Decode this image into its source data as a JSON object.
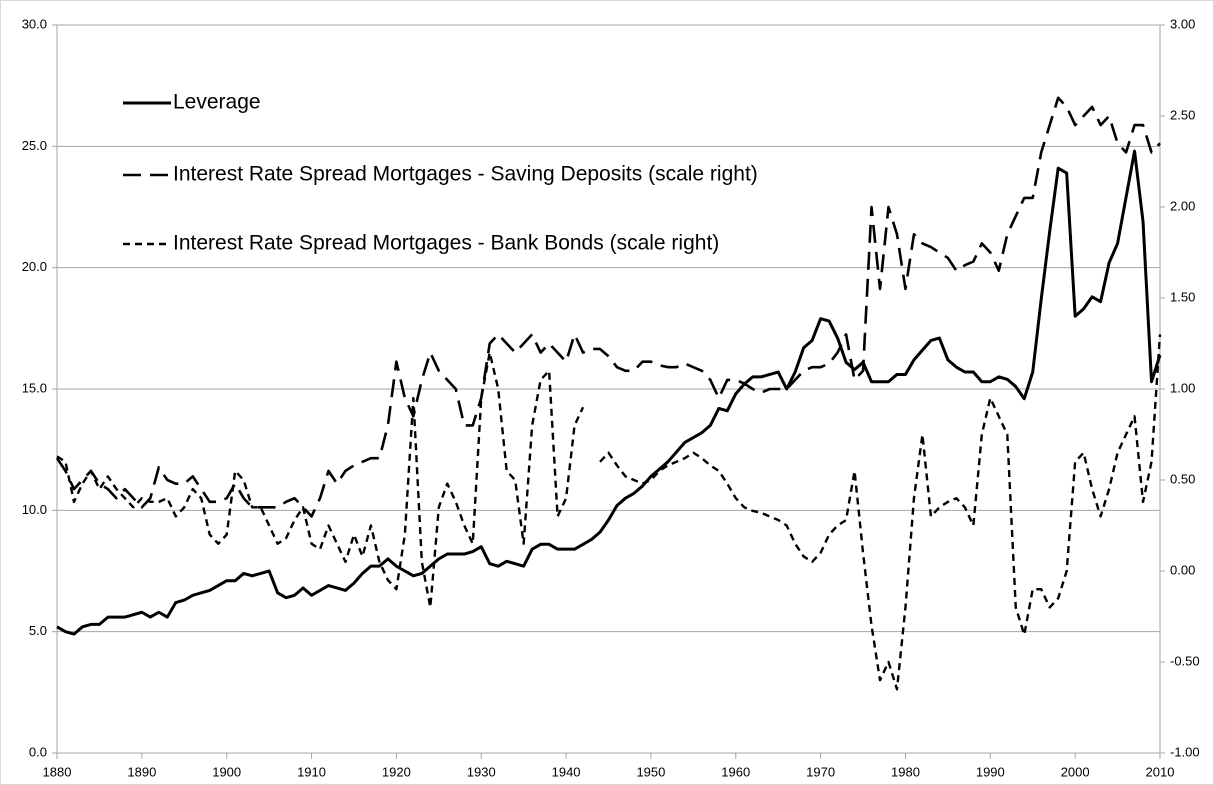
{
  "chart_data": {
    "type": "line",
    "x": [
      1880,
      1881,
      1882,
      1883,
      1884,
      1885,
      1886,
      1887,
      1888,
      1889,
      1890,
      1891,
      1892,
      1893,
      1894,
      1895,
      1896,
      1897,
      1898,
      1899,
      1900,
      1901,
      1902,
      1903,
      1904,
      1905,
      1906,
      1907,
      1908,
      1909,
      1910,
      1911,
      1912,
      1913,
      1914,
      1915,
      1916,
      1917,
      1918,
      1919,
      1920,
      1921,
      1922,
      1923,
      1924,
      1925,
      1926,
      1927,
      1928,
      1929,
      1930,
      1931,
      1932,
      1933,
      1934,
      1935,
      1936,
      1937,
      1938,
      1939,
      1940,
      1941,
      1942,
      1943,
      1944,
      1945,
      1946,
      1947,
      1948,
      1949,
      1950,
      1951,
      1952,
      1953,
      1954,
      1955,
      1956,
      1957,
      1958,
      1959,
      1960,
      1961,
      1962,
      1963,
      1964,
      1965,
      1966,
      1967,
      1968,
      1969,
      1970,
      1971,
      1972,
      1973,
      1974,
      1975,
      1976,
      1977,
      1978,
      1979,
      1980,
      1981,
      1982,
      1983,
      1984,
      1985,
      1986,
      1987,
      1988,
      1989,
      1990,
      1991,
      1992,
      1993,
      1994,
      1995,
      1996,
      1997,
      1998,
      1999,
      2000,
      2001,
      2002,
      2003,
      2004,
      2005,
      2006,
      2007,
      2008,
      2009,
      2010
    ],
    "series": [
      {
        "name": "Leverage",
        "color": "#000000",
        "linestyle": "solid",
        "axis": "y",
        "values": [
          5.2,
          5.0,
          4.9,
          5.2,
          5.3,
          5.3,
          5.6,
          5.6,
          5.6,
          5.7,
          5.8,
          5.6,
          5.8,
          5.6,
          6.2,
          6.3,
          6.5,
          6.6,
          6.7,
          6.9,
          7.1,
          7.1,
          7.4,
          7.3,
          7.4,
          7.5,
          6.6,
          6.4,
          6.5,
          6.8,
          6.5,
          6.7,
          6.9,
          6.8,
          6.7,
          7.0,
          7.4,
          7.7,
          7.7,
          8.0,
          7.7,
          7.5,
          7.3,
          7.4,
          7.7,
          8.0,
          8.2,
          8.2,
          8.2,
          8.3,
          8.5,
          7.8,
          7.7,
          7.9,
          7.8,
          7.7,
          8.4,
          8.6,
          8.6,
          8.4,
          8.4,
          8.4,
          8.6,
          8.8,
          9.1,
          9.6,
          10.2,
          10.5,
          10.7,
          11.0,
          11.4,
          11.7,
          12.0,
          12.4,
          12.8,
          13.0,
          13.2,
          13.5,
          14.2,
          14.1,
          14.8,
          15.2,
          15.5,
          15.5,
          15.6,
          15.7,
          15.0,
          15.7,
          16.7,
          17.0,
          17.9,
          17.8,
          17.1,
          16.1,
          15.8,
          16.1,
          15.3,
          15.3,
          15.3,
          15.6,
          15.6,
          16.2,
          16.6,
          17.0,
          17.1,
          16.2,
          15.9,
          15.7,
          15.7,
          15.3,
          15.3,
          15.5,
          15.4,
          15.1,
          14.6,
          15.7,
          18.7,
          21.5,
          24.1,
          23.9,
          18.0,
          18.3,
          18.8,
          18.6,
          20.2,
          21.0,
          22.9,
          24.8,
          21.9,
          15.3,
          16.4
        ]
      },
      {
        "name": "Interest Rate Spread Mortgages - Saving Deposits (scale right)",
        "color": "#000000",
        "linestyle": "long-dash",
        "axis": "y2",
        "values": [
          0.62,
          0.55,
          0.45,
          0.5,
          0.55,
          0.48,
          0.45,
          0.4,
          0.45,
          0.4,
          0.35,
          0.4,
          0.57,
          0.5,
          0.48,
          0.48,
          0.52,
          0.45,
          0.38,
          0.38,
          0.4,
          0.48,
          0.4,
          0.35,
          0.35,
          0.35,
          0.35,
          0.38,
          0.4,
          0.35,
          0.3,
          0.4,
          0.55,
          0.48,
          0.55,
          0.58,
          0.6,
          0.62,
          0.62,
          0.8,
          1.15,
          0.95,
          0.85,
          1.05,
          1.2,
          1.1,
          1.05,
          1.0,
          0.8,
          0.8,
          0.95,
          1.25,
          1.3,
          1.25,
          1.2,
          1.25,
          1.3,
          1.2,
          1.25,
          1.2,
          1.15,
          1.3,
          1.2,
          1.22,
          1.22,
          1.18,
          1.12,
          1.1,
          1.1,
          1.15,
          1.15,
          1.13,
          1.12,
          1.12,
          1.14,
          1.12,
          1.1,
          1.05,
          0.95,
          1.05,
          1.05,
          1.03,
          1.0,
          0.98,
          1.0,
          1.0,
          1.0,
          1.05,
          1.1,
          1.12,
          1.12,
          1.14,
          1.2,
          1.3,
          1.05,
          1.1,
          2.0,
          1.55,
          2.0,
          1.85,
          1.55,
          1.85,
          1.8,
          1.78,
          1.75,
          1.72,
          1.65,
          1.68,
          1.7,
          1.8,
          1.75,
          1.65,
          1.85,
          1.95,
          2.05,
          2.05,
          2.3,
          2.45,
          2.6,
          2.55,
          2.45,
          2.5,
          2.55,
          2.45,
          2.5,
          2.35,
          2.3,
          2.45,
          2.45,
          2.3,
          2.35
        ]
      },
      {
        "name": "Interest Rate Spread Mortgages - Bank Bonds (scale right)",
        "color": "#000000",
        "linestyle": "short-dash",
        "axis": "y2",
        "values": [
          0.63,
          0.6,
          0.38,
          0.48,
          0.55,
          0.45,
          0.52,
          0.45,
          0.4,
          0.35,
          0.4,
          0.38,
          0.38,
          0.4,
          0.3,
          0.35,
          0.45,
          0.4,
          0.2,
          0.15,
          0.2,
          0.55,
          0.5,
          0.35,
          0.35,
          0.25,
          0.15,
          0.18,
          0.28,
          0.35,
          0.15,
          0.12,
          0.25,
          0.15,
          0.05,
          0.2,
          0.08,
          0.25,
          0.05,
          -0.05,
          -0.1,
          0.2,
          0.95,
          0.05,
          -0.2,
          0.35,
          0.48,
          0.38,
          0.25,
          0.15,
          0.95,
          1.2,
          1.0,
          0.55,
          0.5,
          0.15,
          0.8,
          1.05,
          1.1,
          0.3,
          0.4,
          0.8,
          0.9,
          null,
          0.6,
          0.65,
          0.58,
          0.52,
          0.5,
          0.48,
          0.5,
          0.55,
          0.58,
          0.6,
          0.62,
          0.65,
          0.62,
          0.58,
          0.55,
          0.48,
          0.4,
          0.35,
          0.33,
          0.32,
          0.3,
          0.28,
          0.25,
          0.15,
          0.08,
          0.05,
          0.1,
          0.2,
          0.25,
          0.28,
          0.55,
          0.1,
          -0.3,
          -0.6,
          -0.5,
          -0.65,
          -0.2,
          0.4,
          0.75,
          0.3,
          0.35,
          0.38,
          0.4,
          0.35,
          0.25,
          0.75,
          0.95,
          0.85,
          0.75,
          -0.2,
          -0.35,
          -0.1,
          -0.1,
          -0.2,
          -0.15,
          0.0,
          0.6,
          0.65,
          0.45,
          0.3,
          0.45,
          0.65,
          0.75,
          0.85,
          0.38,
          0.6,
          1.3
        ]
      }
    ],
    "xlim": [
      1880,
      2010
    ],
    "xticks": [
      1880,
      1890,
      1900,
      1910,
      1920,
      1930,
      1940,
      1950,
      1960,
      1970,
      1980,
      1990,
      2000,
      2010
    ],
    "ylim": [
      0,
      30
    ],
    "yticks": [
      {
        "value": 0,
        "label": "0.0"
      },
      {
        "value": 5,
        "label": "5.0"
      },
      {
        "value": 10,
        "label": "10.0"
      },
      {
        "value": 15,
        "label": "15.0"
      },
      {
        "value": 20,
        "label": "20.0"
      },
      {
        "value": 25,
        "label": "25.0"
      },
      {
        "value": 30,
        "label": "30.0"
      }
    ],
    "y2lim": [
      -1,
      3
    ],
    "y2ticks": [
      {
        "value": -1,
        "label": "-1.00"
      },
      {
        "value": -0.5,
        "label": "-0.50"
      },
      {
        "value": 0,
        "label": "0.00"
      },
      {
        "value": 0.5,
        "label": "0.50"
      },
      {
        "value": 1,
        "label": "1.00"
      },
      {
        "value": 1.5,
        "label": "1.50"
      },
      {
        "value": 2,
        "label": "2.00"
      },
      {
        "value": 2.5,
        "label": "2.50"
      },
      {
        "value": 3,
        "label": "3.00"
      }
    ],
    "grid": true,
    "legend": "upper left"
  }
}
